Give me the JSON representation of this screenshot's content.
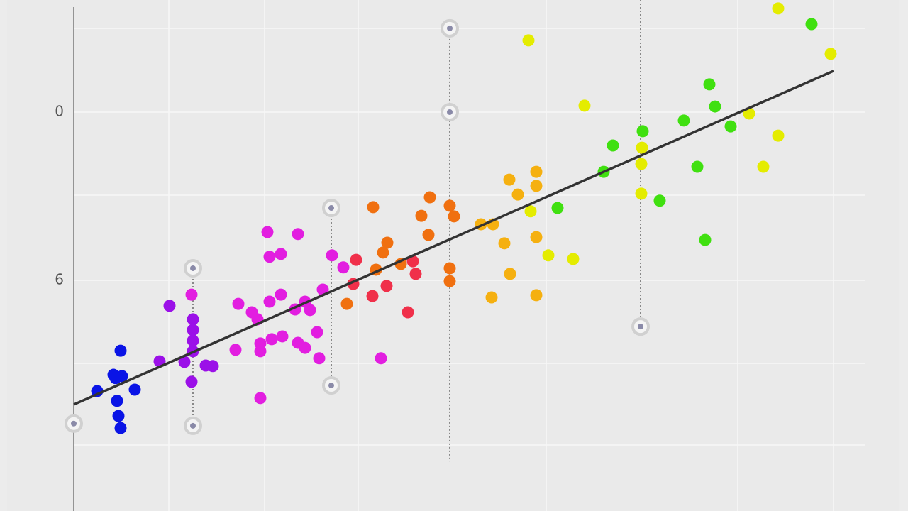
{
  "chart_data": {
    "type": "scatter",
    "xlim": [
      0,
      107.1
    ],
    "ylim": [
      14.23,
      -4.0
    ],
    "yticks": [
      0,
      6
    ],
    "series": [
      {
        "color": "#0a14e6",
        "x": [
          6.6,
          5.6,
          6.8,
          3.3,
          8.6,
          6.1,
          6.3,
          6.6,
          5.9
        ],
        "values": [
          8.51,
          9.37,
          9.42,
          9.95,
          9.9,
          10.3,
          10.84,
          11.27,
          9.49
        ]
      },
      {
        "color": "#9b10e8",
        "x": [
          13.5,
          12.1,
          15.6,
          16.8,
          16.8,
          16.8,
          16.6,
          18.6,
          19.6,
          16.8
        ],
        "values": [
          6.91,
          8.89,
          8.91,
          7.39,
          7.77,
          8.15,
          9.62,
          9.04,
          9.06,
          8.53
        ]
      },
      {
        "color": "#e21ee0",
        "x": [
          27.3,
          31.6,
          27.6,
          29.2,
          23.2,
          25.1,
          25.9,
          29.2,
          27.6,
          31.2,
          33.3,
          32.6,
          22.8,
          26.3,
          26.3,
          27.9,
          29.4,
          31.6,
          32.6,
          34.3,
          34.6,
          26.3,
          35.1,
          36.4,
          38.0,
          16.6,
          43.3
        ],
        "values": [
          4.28,
          4.35,
          5.16,
          5.06,
          6.84,
          7.14,
          7.39,
          6.51,
          6.76,
          7.04,
          7.06,
          6.76,
          8.48,
          8.25,
          8.53,
          8.1,
          8.0,
          8.23,
          8.41,
          7.85,
          8.78,
          10.2,
          6.33,
          5.11,
          5.54,
          6.51,
          8.78
        ]
      },
      {
        "color": "#f0304a",
        "x": [
          39.8,
          39.4,
          42.1,
          44.1,
          47.1,
          48.2,
          47.8
        ],
        "values": [
          5.27,
          6.13,
          6.56,
          6.2,
          7.14,
          5.77,
          5.32
        ]
      },
      {
        "color": "#f07010",
        "x": [
          42.2,
          50.2,
          49.0,
          50.0,
          44.2,
          43.6,
          42.6,
          46.1,
          38.5,
          53.0,
          53.6,
          53.0,
          53.0
        ],
        "values": [
          3.39,
          3.04,
          3.7,
          4.38,
          4.66,
          5.01,
          5.62,
          5.42,
          6.84,
          3.34,
          3.72,
          5.57,
          6.03
        ]
      },
      {
        "color": "#f5b010",
        "x": [
          61.4,
          62.6,
          65.2,
          65.2,
          57.4,
          59.1,
          60.7,
          61.5,
          58.9,
          65.2,
          65.2
        ],
        "values": [
          2.41,
          2.94,
          2.13,
          2.63,
          4.0,
          4.0,
          4.68,
          5.77,
          6.61,
          6.53,
          4.46
        ]
      },
      {
        "color": "#e4ec00",
        "x": [
          64.1,
          72.0,
          99.3,
          106.7,
          99.3,
          97.2,
          95.2,
          64.4,
          66.9,
          70.4,
          80.0,
          80.0,
          80.1
        ],
        "values": [
          -2.56,
          -0.23,
          -3.7,
          -2.08,
          0.84,
          1.95,
          0.05,
          3.54,
          5.11,
          5.24,
          2.91,
          1.85,
          1.27
        ]
      },
      {
        "color": "#40e010",
        "x": [
          104.0,
          89.6,
          90.4,
          86.0,
          80.2,
          76.0,
          74.7,
          87.9,
          82.6,
          89.0,
          92.6,
          68.2
        ],
        "values": [
          -3.14,
          -0.99,
          -0.2,
          0.3,
          0.68,
          1.19,
          2.13,
          1.95,
          3.16,
          4.56,
          0.51,
          3.42
        ]
      }
    ],
    "fit": {
      "color": "#333333",
      "x": [
        0,
        107.1
      ],
      "values": [
        10.43,
        -1.47
      ]
    },
    "ranges": {
      "x": [
        16.8,
        36.3,
        53.0,
        79.9
      ],
      "low": [
        5.57,
        3.42,
        -2.99,
        -4.0
      ],
      "high": [
        11.19,
        9.75,
        12.46,
        7.65
      ]
    },
    "highlights": {
      "x": [
        16.8,
        16.8,
        36.3,
        36.3,
        53.0,
        53.0,
        79.9,
        0
      ],
      "values": [
        5.57,
        11.19,
        3.42,
        9.75,
        -2.99,
        0,
        7.65,
        11.11
      ]
    }
  }
}
